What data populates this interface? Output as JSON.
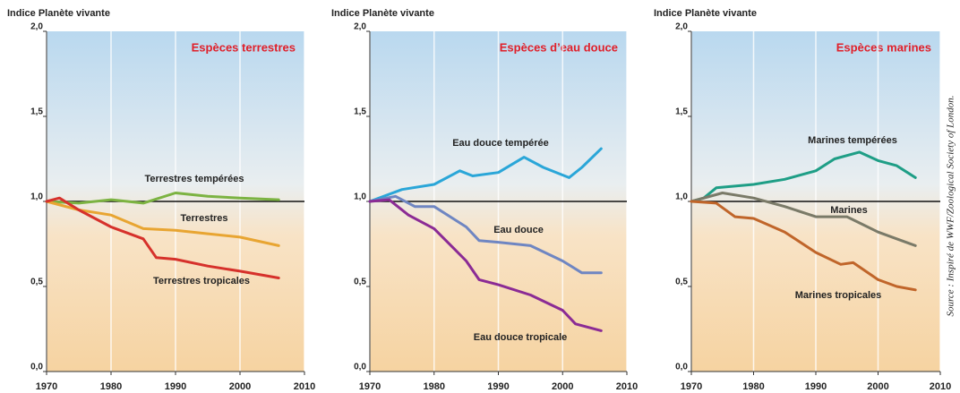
{
  "chart_data": [
    {
      "type": "line",
      "ylabel": "Indice Planète vivante",
      "subtitle": "Espèces terrestres",
      "xlim": [
        1970,
        2010
      ],
      "xticks": [
        1970,
        1980,
        1990,
        2000,
        2010
      ],
      "ylim": [
        0,
        2
      ],
      "yticks": [
        {
          "value": 0,
          "label": "0,0"
        },
        {
          "value": 0.5,
          "label": "0,5"
        },
        {
          "value": 1,
          "label": "1,0"
        },
        {
          "value": 1.5,
          "label": "1,5"
        },
        {
          "value": 2,
          "label": "2,0"
        }
      ],
      "reference_line": 1,
      "grid": true,
      "series": [
        {
          "name": "Terrestres tempérées",
          "color": "#7cb342",
          "x": [
            1970,
            1975,
            1980,
            1985,
            1990,
            1995,
            2000,
            2006
          ],
          "values": [
            1.0,
            0.99,
            1.01,
            0.99,
            1.05,
            1.03,
            1.02,
            1.01
          ]
        },
        {
          "name": "Terrestres",
          "color": "#e8a532",
          "x": [
            1970,
            1975,
            1980,
            1985,
            1990,
            1995,
            2000,
            2006
          ],
          "values": [
            1.0,
            0.95,
            0.92,
            0.84,
            0.83,
            0.81,
            0.79,
            0.74
          ]
        },
        {
          "name": "Terrestres tropicales",
          "color": "#d6312b",
          "x": [
            1970,
            1972,
            1975,
            1980,
            1985,
            1987,
            1990,
            1995,
            2000,
            2006
          ],
          "values": [
            1.0,
            1.02,
            0.95,
            0.85,
            0.78,
            0.67,
            0.66,
            0.62,
            0.59,
            0.55
          ]
        }
      ]
    },
    {
      "type": "line",
      "ylabel": "Indice Planète vivante",
      "subtitle": "Espèces d’eau douce",
      "xlim": [
        1970,
        2010
      ],
      "xticks": [
        1970,
        1980,
        1990,
        2000,
        2010
      ],
      "ylim": [
        0,
        2
      ],
      "yticks": [
        {
          "value": 0,
          "label": "0,0"
        },
        {
          "value": 0.5,
          "label": "0,5"
        },
        {
          "value": 1,
          "label": "1,0"
        },
        {
          "value": 1.5,
          "label": "1,5"
        },
        {
          "value": 2,
          "label": "2,0"
        }
      ],
      "reference_line": 1,
      "grid": true,
      "series": [
        {
          "name": "Eau douce tempérée",
          "color": "#2aa6d8",
          "x": [
            1970,
            1975,
            1980,
            1984,
            1986,
            1990,
            1994,
            1997,
            2001,
            2003,
            2006
          ],
          "values": [
            1.0,
            1.07,
            1.1,
            1.18,
            1.15,
            1.17,
            1.26,
            1.2,
            1.14,
            1.2,
            1.31
          ]
        },
        {
          "name": "Eau douce",
          "color": "#6f86c2",
          "x": [
            1970,
            1974,
            1977,
            1980,
            1985,
            1987,
            1990,
            1995,
            2000,
            2003,
            2006
          ],
          "values": [
            1.0,
            1.03,
            0.97,
            0.97,
            0.85,
            0.77,
            0.76,
            0.74,
            0.65,
            0.58,
            0.58
          ]
        },
        {
          "name": "Eau douce tropicale",
          "color": "#8b2b95",
          "x": [
            1970,
            1973,
            1976,
            1980,
            1985,
            1987,
            1990,
            1995,
            2000,
            2002,
            2006
          ],
          "values": [
            1.0,
            1.01,
            0.92,
            0.84,
            0.65,
            0.54,
            0.51,
            0.45,
            0.36,
            0.28,
            0.24
          ]
        }
      ]
    },
    {
      "type": "line",
      "ylabel": "Indice Planète vivante",
      "subtitle": "Espèces marines",
      "xlim": [
        1970,
        2010
      ],
      "xticks": [
        1970,
        1980,
        1990,
        2000,
        2010
      ],
      "ylim": [
        0,
        2
      ],
      "yticks": [
        {
          "value": 0,
          "label": "0,0"
        },
        {
          "value": 0.5,
          "label": "0,5"
        },
        {
          "value": 1,
          "label": "1,0"
        },
        {
          "value": 1.5,
          "label": "1,5"
        },
        {
          "value": 2,
          "label": "2,0"
        }
      ],
      "reference_line": 1,
      "grid": true,
      "series": [
        {
          "name": "Marines tempérées",
          "color": "#1e9e86",
          "x": [
            1970,
            1972,
            1974,
            1980,
            1985,
            1990,
            1993,
            1997,
            2000,
            2003,
            2006
          ],
          "values": [
            1.0,
            1.02,
            1.08,
            1.1,
            1.13,
            1.18,
            1.25,
            1.29,
            1.24,
            1.21,
            1.14
          ]
        },
        {
          "name": "Marines",
          "color": "#7a7a68",
          "x": [
            1970,
            1975,
            1980,
            1985,
            1990,
            1995,
            2000,
            2003,
            2006
          ],
          "values": [
            1.0,
            1.05,
            1.02,
            0.97,
            0.91,
            0.91,
            0.82,
            0.78,
            0.74
          ]
        },
        {
          "name": "Marines tropicales",
          "color": "#c0652a",
          "x": [
            1970,
            1974,
            1977,
            1980,
            1985,
            1990,
            1994,
            1996,
            2000,
            2003,
            2006
          ],
          "values": [
            1.0,
            0.99,
            0.91,
            0.9,
            0.82,
            0.7,
            0.63,
            0.64,
            0.54,
            0.5,
            0.48
          ]
        }
      ]
    }
  ],
  "source": "Source : Inspiré de WWF/Zoological Society of London."
}
